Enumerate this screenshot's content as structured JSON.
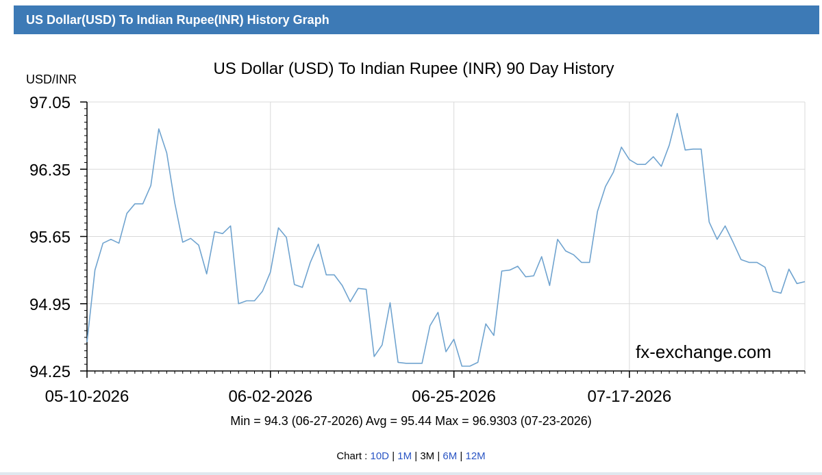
{
  "header": {
    "title": "US Dollar(USD) To Indian Rupee(INR) History Graph"
  },
  "summary": {
    "min_label": "Min = 94.3 (06-27-2026)",
    "avg_label": "Avg = 95.44",
    "max_label": "Max = 96.9303 (07-23-2026)"
  },
  "nav": {
    "prefix": "Chart : ",
    "items": [
      {
        "label": "10D",
        "active": false
      },
      {
        "label": "1M",
        "active": false
      },
      {
        "label": "3M",
        "active": true
      },
      {
        "label": "6M",
        "active": false
      },
      {
        "label": "12M",
        "active": false
      }
    ],
    "separator": "|"
  },
  "colors": {
    "header_bg": "#3d7ab6",
    "line": "#6fa3cf",
    "grid": "#d9d9d9",
    "link": "#2a55c4"
  },
  "chart_data": {
    "type": "line",
    "title": "US Dollar (USD) To Indian Rupee (INR) 90 Day History",
    "ylabel": "USD/INR",
    "watermark": "fx-exchange.com",
    "ylim": [
      94.25,
      97.05
    ],
    "yticks": [
      "97.05",
      "96.35",
      "95.65",
      "94.95",
      "94.25"
    ],
    "xticks": [
      {
        "label": "05-10-2026",
        "index": 0
      },
      {
        "label": "06-02-2026",
        "index": 23
      },
      {
        "label": "06-25-2026",
        "index": 46
      },
      {
        "label": "07-17-2026",
        "index": 68
      }
    ],
    "grid": true,
    "series": [
      {
        "values": [
          94.55,
          95.3,
          95.58,
          95.62,
          95.58,
          95.89,
          95.99,
          95.99,
          96.18,
          96.77,
          96.52,
          96.0,
          95.59,
          95.63,
          95.56,
          95.26,
          95.7,
          95.68,
          95.76,
          94.95,
          94.98,
          94.98,
          95.08,
          95.28,
          95.74,
          95.64,
          95.15,
          95.12,
          95.38,
          95.57,
          95.25,
          95.25,
          95.14,
          94.97,
          95.11,
          95.1,
          94.4,
          94.52,
          94.96,
          94.34,
          94.33,
          94.33,
          94.33,
          94.72,
          94.86,
          94.45,
          94.58,
          94.3,
          94.3,
          94.34,
          94.74,
          94.62,
          95.29,
          95.3,
          95.34,
          95.23,
          95.24,
          95.44,
          95.14,
          95.62,
          95.5,
          95.46,
          95.38,
          95.38,
          95.91,
          96.17,
          96.32,
          96.58,
          96.45,
          96.4,
          96.4,
          96.48,
          96.38,
          96.6,
          96.93,
          96.55,
          96.56,
          96.56,
          95.8,
          95.62,
          95.76,
          95.59,
          95.41,
          95.38,
          95.38,
          95.33,
          95.08,
          95.06,
          95.31,
          95.16,
          95.18
        ]
      }
    ]
  }
}
